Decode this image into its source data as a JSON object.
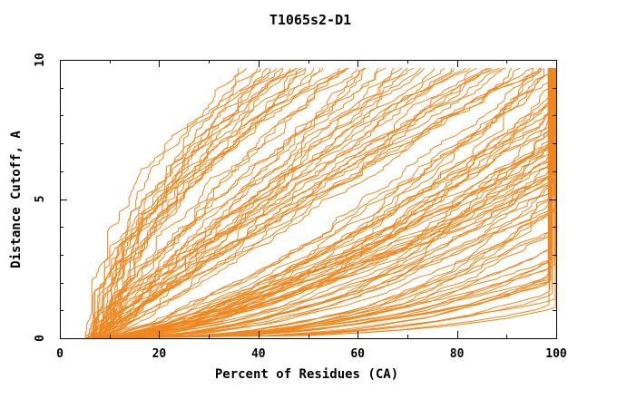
{
  "window": {
    "background": "#ffffff"
  },
  "chart_data": {
    "type": "line",
    "title": "T1065s2-D1",
    "xlabel": "Percent of Residues (CA)",
    "ylabel": "Distance Cutoff, A",
    "xlim": [
      0,
      100
    ],
    "ylim": [
      0,
      10
    ],
    "x_major_ticks": [
      0,
      20,
      40,
      60,
      80,
      100
    ],
    "x_minor_step": 10,
    "y_major_ticks": [
      0,
      5,
      10
    ],
    "y_minor_step": 1,
    "grid": false,
    "legend": "none",
    "line_color": "#f0871e",
    "axis_color": "#000000",
    "y_max_reached": 9.7,
    "series_count": 122,
    "curve_model": "Each model curve: x(y) = x0 + (x_top - x0) * (y/9.7)^shape, monotone, clipped at x<=100 (vertical rise at right edge), y runs 0..9.7 A; small seeded wiggle reproduces step texture. Entries are [x0, x_top, shape, seed].",
    "curves": [
      [
        6,
        36,
        1.8,
        1
      ],
      [
        7,
        38,
        1.5,
        2
      ],
      [
        5,
        40,
        2.0,
        3
      ],
      [
        8,
        42,
        1.6,
        4
      ],
      [
        6,
        44,
        1.9,
        5
      ],
      [
        7,
        46,
        1.4,
        6
      ],
      [
        5,
        48,
        2.1,
        7
      ],
      [
        8,
        50,
        1.7,
        8
      ],
      [
        6,
        52,
        1.5,
        9
      ],
      [
        7,
        54,
        1.9,
        10
      ],
      [
        5,
        56,
        1.6,
        11
      ],
      [
        8,
        58,
        2.0,
        12
      ],
      [
        6,
        60,
        1.4,
        13
      ],
      [
        7,
        41,
        1.3,
        14
      ],
      [
        5,
        45,
        1.7,
        15
      ],
      [
        8,
        49,
        1.5,
        16
      ],
      [
        6,
        53,
        1.8,
        17
      ],
      [
        7,
        57,
        1.3,
        18
      ],
      [
        5,
        39,
        1.5,
        19
      ],
      [
        8,
        43,
        1.8,
        20
      ],
      [
        6,
        47,
        1.6,
        21
      ],
      [
        7,
        51,
        1.4,
        22
      ],
      [
        6,
        58,
        1.2,
        23
      ],
      [
        7,
        62,
        1.0,
        24
      ],
      [
        5,
        66,
        1.3,
        25
      ],
      [
        8,
        70,
        0.9,
        26
      ],
      [
        6,
        74,
        1.2,
        27
      ],
      [
        7,
        78,
        1.0,
        28
      ],
      [
        5,
        82,
        1.3,
        29
      ],
      [
        8,
        86,
        0.95,
        30
      ],
      [
        6,
        90,
        1.15,
        31
      ],
      [
        7,
        94,
        1.0,
        32
      ],
      [
        5,
        98,
        1.25,
        33
      ],
      [
        8,
        61,
        0.9,
        34
      ],
      [
        6,
        65,
        1.2,
        35
      ],
      [
        7,
        69,
        1.0,
        36
      ],
      [
        5,
        73,
        1.3,
        37
      ],
      [
        8,
        77,
        0.9,
        38
      ],
      [
        6,
        81,
        1.1,
        39
      ],
      [
        7,
        85,
        1.0,
        40
      ],
      [
        5,
        89,
        1.2,
        41
      ],
      [
        8,
        93,
        0.9,
        42
      ],
      [
        6,
        97,
        1.1,
        43
      ],
      [
        7,
        63,
        1.05,
        44
      ],
      [
        5,
        71,
        0.95,
        45
      ],
      [
        8,
        79,
        1.15,
        46
      ],
      [
        6,
        87,
        0.9,
        47
      ],
      [
        7,
        95,
        1.1,
        48
      ],
      [
        5,
        67,
        1.0,
        49
      ],
      [
        8,
        75,
        1.2,
        50
      ],
      [
        6,
        83,
        0.95,
        51
      ],
      [
        7,
        91,
        1.05,
        52
      ],
      [
        6,
        96,
        0.7,
        53
      ],
      [
        7,
        99,
        0.55,
        54
      ],
      [
        5,
        102,
        0.75,
        55
      ],
      [
        8,
        105,
        0.6,
        56
      ],
      [
        6,
        108,
        0.7,
        57
      ],
      [
        7,
        111,
        0.5,
        58
      ],
      [
        5,
        114,
        0.65,
        59
      ],
      [
        8,
        117,
        0.75,
        60
      ],
      [
        6,
        120,
        0.55,
        61
      ],
      [
        7,
        123,
        0.7,
        62
      ],
      [
        5,
        126,
        0.6,
        63
      ],
      [
        8,
        129,
        0.75,
        64
      ],
      [
        6,
        132,
        0.5,
        65
      ],
      [
        7,
        135,
        0.65,
        66
      ],
      [
        5,
        138,
        0.7,
        67
      ],
      [
        8,
        141,
        0.55,
        68
      ],
      [
        6,
        98,
        0.6,
        69
      ],
      [
        7,
        101,
        0.75,
        70
      ],
      [
        5,
        104,
        0.5,
        71
      ],
      [
        8,
        107,
        0.7,
        72
      ],
      [
        6,
        110,
        0.6,
        73
      ],
      [
        7,
        113,
        0.75,
        74
      ],
      [
        5,
        116,
        0.55,
        75
      ],
      [
        8,
        119,
        0.65,
        76
      ],
      [
        6,
        122,
        0.7,
        77
      ],
      [
        7,
        125,
        0.5,
        78
      ],
      [
        5,
        128,
        0.6,
        79
      ],
      [
        8,
        131,
        0.7,
        80
      ],
      [
        6,
        134,
        0.55,
        81
      ],
      [
        7,
        137,
        0.65,
        82
      ],
      [
        5,
        140,
        0.75,
        83
      ],
      [
        8,
        97,
        0.6,
        84
      ],
      [
        6,
        103,
        0.5,
        85
      ],
      [
        7,
        109,
        0.7,
        86
      ],
      [
        5,
        115,
        0.6,
        87
      ],
      [
        8,
        121,
        0.75,
        88
      ],
      [
        6,
        127,
        0.55,
        89
      ],
      [
        7,
        133,
        0.65,
        90
      ],
      [
        5,
        139,
        0.5,
        91
      ],
      [
        8,
        100,
        0.7,
        92
      ],
      [
        6,
        110,
        0.4,
        93
      ],
      [
        7,
        118,
        0.32,
        94
      ],
      [
        5,
        126,
        0.44,
        95
      ],
      [
        8,
        134,
        0.36,
        96
      ],
      [
        6,
        142,
        0.42,
        97
      ],
      [
        7,
        150,
        0.3,
        98
      ],
      [
        5,
        158,
        0.38,
        99
      ],
      [
        8,
        166,
        0.45,
        100
      ],
      [
        6,
        174,
        0.33,
        101
      ],
      [
        7,
        182,
        0.41,
        102
      ],
      [
        5,
        190,
        0.35,
        103
      ],
      [
        8,
        114,
        0.43,
        104
      ],
      [
        6,
        122,
        0.31,
        105
      ],
      [
        7,
        130,
        0.39,
        106
      ],
      [
        5,
        138,
        0.45,
        107
      ],
      [
        8,
        146,
        0.34,
        108
      ],
      [
        6,
        154,
        0.42,
        109
      ],
      [
        7,
        162,
        0.3,
        110
      ],
      [
        5,
        170,
        0.37,
        111
      ],
      [
        8,
        178,
        0.44,
        112
      ],
      [
        6,
        186,
        0.32,
        113
      ],
      [
        7,
        116,
        0.4,
        114
      ],
      [
        5,
        124,
        0.34,
        115
      ],
      [
        8,
        140,
        0.42,
        116
      ],
      [
        6,
        156,
        0.36,
        117
      ],
      [
        7,
        172,
        0.44,
        118
      ],
      [
        5,
        188,
        0.31,
        119
      ],
      [
        8,
        148,
        0.39,
        120
      ],
      [
        6,
        164,
        0.33,
        121
      ],
      [
        7,
        180,
        0.41,
        122
      ]
    ]
  }
}
